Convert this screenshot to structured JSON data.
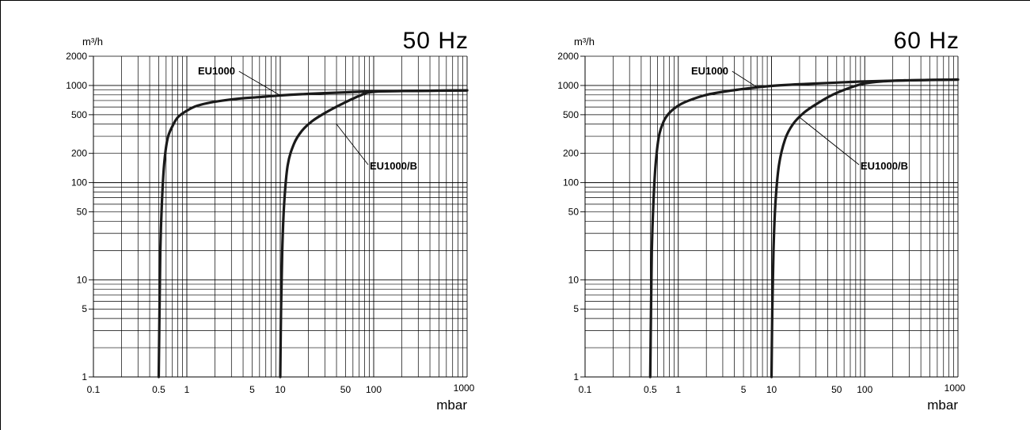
{
  "chart_data": [
    {
      "type": "line",
      "title": "50 Hz",
      "ylabel": "m³/h",
      "xlabel": "mbar",
      "xscale": "log",
      "yscale": "log",
      "xlim": [
        0.1,
        1000
      ],
      "ylim": [
        1,
        2000
      ],
      "grid": true,
      "x_ticks": [
        "0.1",
        "0.5",
        "1",
        "5",
        "10",
        "50",
        "100",
        "1000"
      ],
      "y_ticks": [
        "2000",
        "1000",
        "500",
        "200",
        "100",
        "50",
        "10",
        "5",
        "1"
      ],
      "series": [
        {
          "name": "EU1000",
          "x": [
            0.5,
            0.51,
            0.52,
            0.54,
            0.57,
            0.62,
            0.7,
            0.8,
            1.0,
            1.3,
            2.0,
            3.5,
            6,
            10,
            20,
            50,
            100,
            300,
            1000
          ],
          "y": [
            1,
            5,
            20,
            60,
            150,
            280,
            380,
            470,
            550,
            620,
            680,
            730,
            760,
            790,
            820,
            850,
            870,
            880,
            890
          ]
        },
        {
          "name": "EU1000/B",
          "x": [
            10,
            10.2,
            10.5,
            11,
            12,
            14,
            17,
            22,
            30,
            45,
            70,
            100,
            300,
            1000
          ],
          "y": [
            1,
            5,
            20,
            60,
            150,
            250,
            340,
            430,
            520,
            640,
            780,
            860,
            880,
            890
          ]
        }
      ]
    },
    {
      "type": "line",
      "title": "60 Hz",
      "ylabel": "m³/h",
      "xlabel": "mbar",
      "xscale": "log",
      "yscale": "log",
      "xlim": [
        0.1,
        1000
      ],
      "ylim": [
        1,
        2000
      ],
      "grid": true,
      "x_ticks": [
        "0.1",
        "0.5",
        "1",
        "5",
        "10",
        "50",
        "100",
        "1000"
      ],
      "y_ticks": [
        "2000",
        "1000",
        "500",
        "200",
        "100",
        "50",
        "10",
        "5",
        "1"
      ],
      "series": [
        {
          "name": "EU1000",
          "x": [
            0.5,
            0.51,
            0.52,
            0.54,
            0.57,
            0.62,
            0.7,
            0.8,
            1.0,
            1.3,
            2.0,
            3.5,
            6,
            10,
            20,
            50,
            100,
            300,
            1000
          ],
          "y": [
            1,
            5,
            20,
            60,
            150,
            300,
            430,
            520,
            620,
            700,
            800,
            880,
            940,
            990,
            1030,
            1070,
            1100,
            1130,
            1150
          ]
        },
        {
          "name": "EU1000/B",
          "x": [
            10,
            10.2,
            10.5,
            11,
            12,
            14,
            17,
            22,
            30,
            45,
            70,
            100,
            150,
            300,
            1000
          ],
          "y": [
            1,
            5,
            20,
            60,
            150,
            280,
            400,
            520,
            640,
            800,
            950,
            1050,
            1100,
            1130,
            1150
          ]
        }
      ]
    }
  ]
}
